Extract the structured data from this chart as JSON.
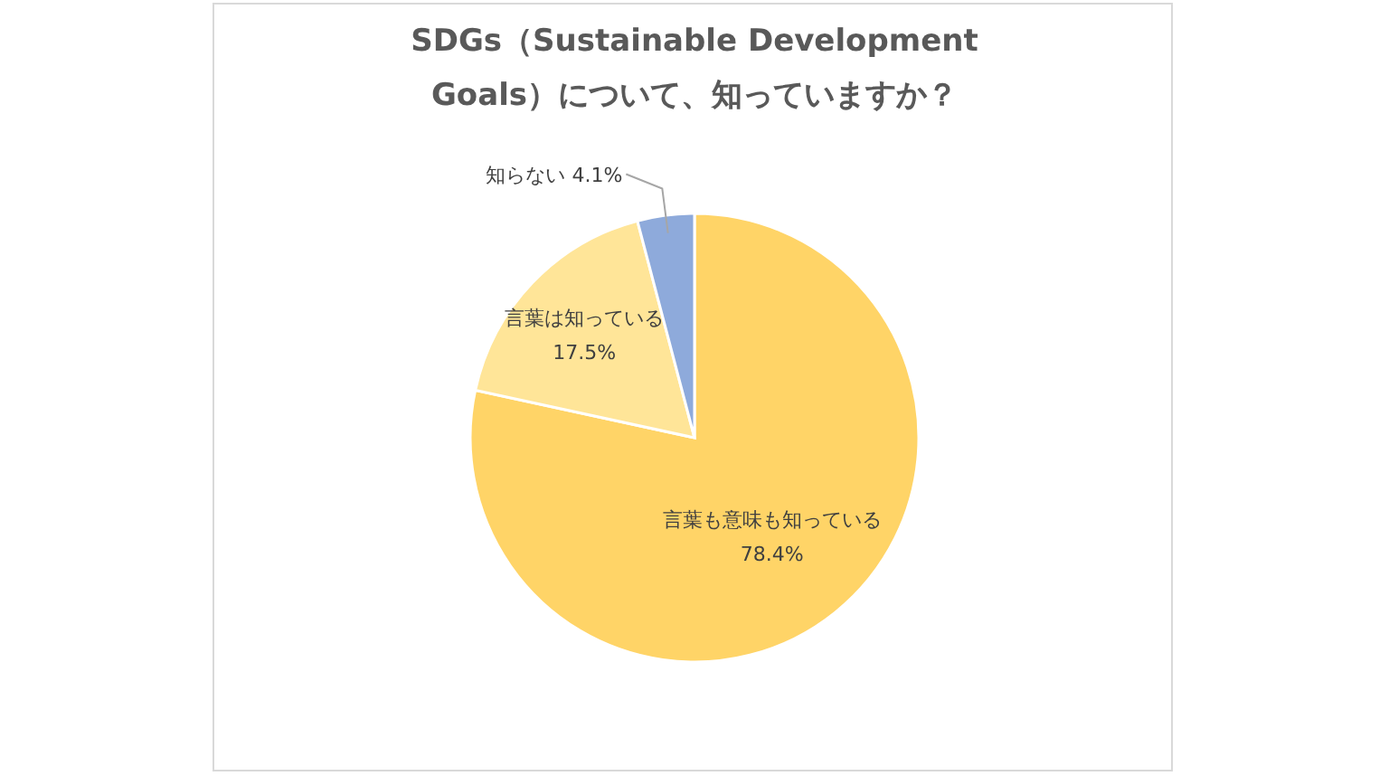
{
  "chart_data": {
    "type": "pie",
    "title": "SDGs（Sustainable Development Goals）について、知っていますか？",
    "categories": [
      "言葉も意味も知っている",
      "言葉は知っている",
      "知らない"
    ],
    "values": [
      78.4,
      17.5,
      4.1
    ],
    "colors": [
      "#ffd467",
      "#ffe598",
      "#8eaadb"
    ],
    "value_labels": [
      "78.4%",
      "17.5%",
      "4.1%"
    ]
  }
}
